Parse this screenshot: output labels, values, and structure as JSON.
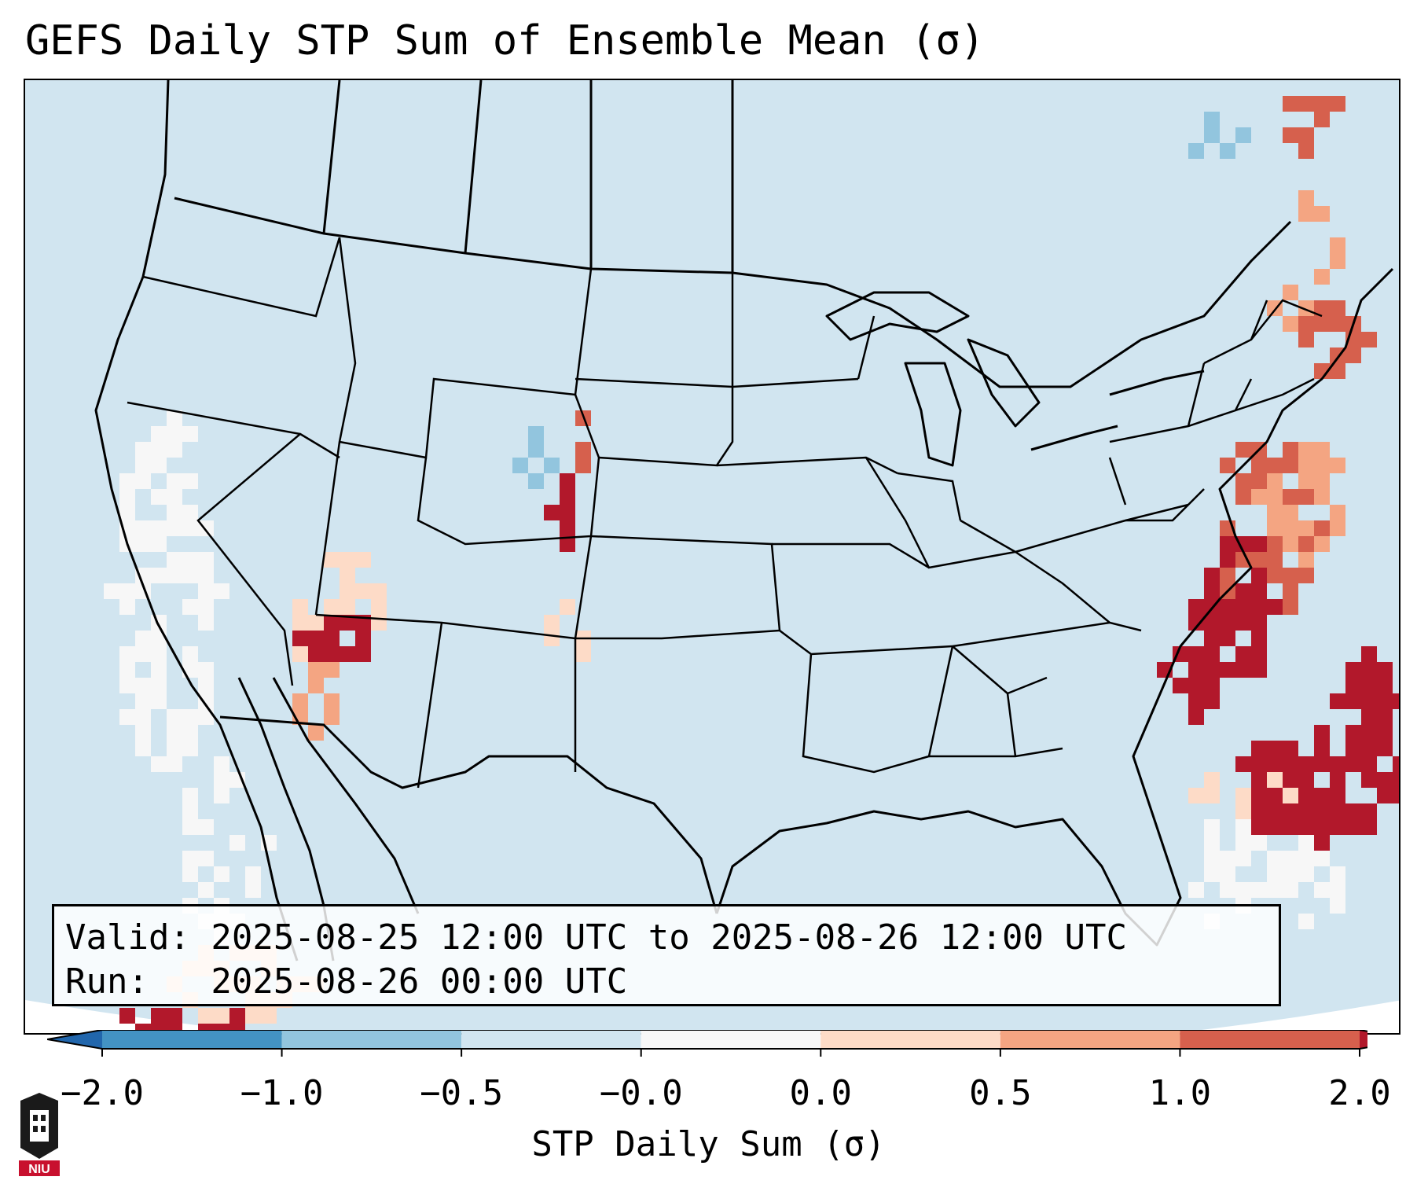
{
  "title": "GEFS Daily STP Sum of Ensemble Mean (σ)",
  "valid_line": "Valid: 2025-08-25 12:00 UTC to 2025-08-26 12:00 UTC",
  "run_line": "Run:   2025-08-26 00:00 UTC",
  "colorbar": {
    "label": "STP Daily Sum (σ)",
    "ticks": [
      "−2.0",
      "−1.0",
      "−0.5",
      "−0.0",
      "0.0",
      "0.5",
      "1.0",
      "2.0"
    ],
    "colors": [
      "#4393c3",
      "#92c5de",
      "#d1e5f0",
      "#f7f7f7",
      "#fddbc7",
      "#f4a582",
      "#d6604d"
    ],
    "under_color": "#2166ac",
    "over_color": "#b2182b"
  },
  "map": {
    "background_color": "#d1e5f0",
    "features": [
      "US state borders",
      "coastlines",
      "Canada provinces",
      "Mexico",
      "Great Lakes"
    ],
    "highlights": [
      {
        "region": "southern Nevada / western Arizona",
        "level": "≥2.0"
      },
      {
        "region": "Mid-Atlantic coast and North Carolina",
        "level": "≥2.0"
      },
      {
        "region": "New England",
        "level": "1.0 to 2.0"
      },
      {
        "region": "western Atlantic east of Florida",
        "level": "≥2.0"
      },
      {
        "region": "off the California coast",
        "level": "−0.0 to 0.0"
      },
      {
        "region": "Colorado",
        "level": "−1.0 to −0.5"
      }
    ]
  },
  "logo": {
    "text": "NIU"
  }
}
